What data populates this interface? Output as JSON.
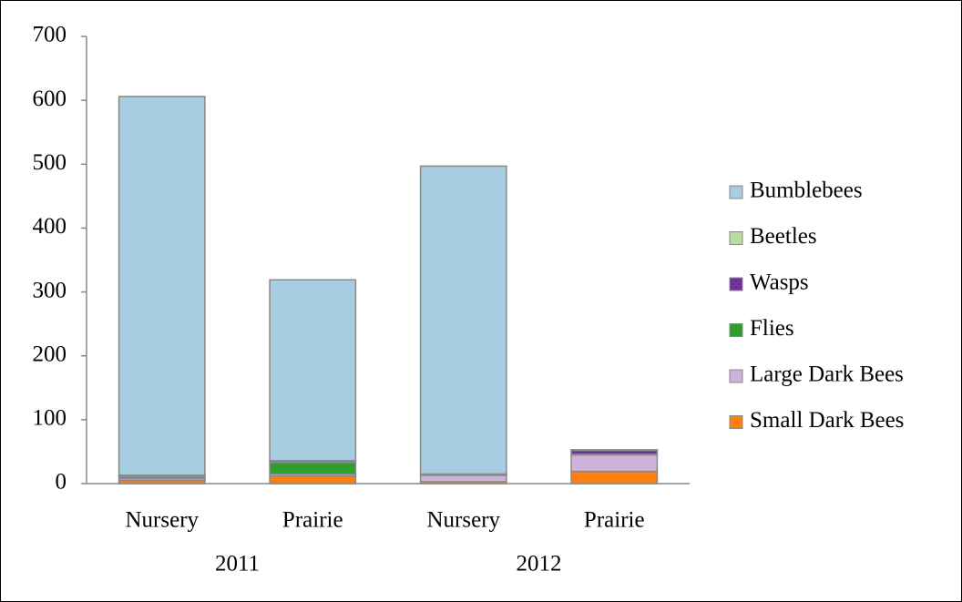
{
  "chart_data": {
    "type": "stacked_bar",
    "categories": [
      "Nursery",
      "Prairie",
      "Nursery",
      "Prairie"
    ],
    "groups": [
      "2011",
      "2012"
    ],
    "series": [
      {
        "name": "Small Dark Bees",
        "color": "#ff7f0e",
        "values": [
          5,
          12,
          3,
          19
        ]
      },
      {
        "name": "Large Dark Bees",
        "color": "#ccb3d9",
        "values": [
          3,
          3,
          10,
          26
        ]
      },
      {
        "name": "Flies",
        "color": "#2ca02c",
        "values": [
          2,
          18,
          1,
          1
        ]
      },
      {
        "name": "Wasps",
        "color": "#7030a0",
        "values": [
          2,
          2,
          1,
          6
        ]
      },
      {
        "name": "Beetles",
        "color": "#b5dd9c",
        "values": [
          1,
          1,
          0,
          0
        ]
      },
      {
        "name": "Bumblebees",
        "color": "#a6cde0",
        "values": [
          593,
          283,
          482,
          1
        ]
      }
    ],
    "ylim": [
      0,
      700
    ],
    "yticks": [
      0,
      100,
      200,
      300,
      400,
      500,
      600,
      700
    ],
    "legend": "right"
  }
}
